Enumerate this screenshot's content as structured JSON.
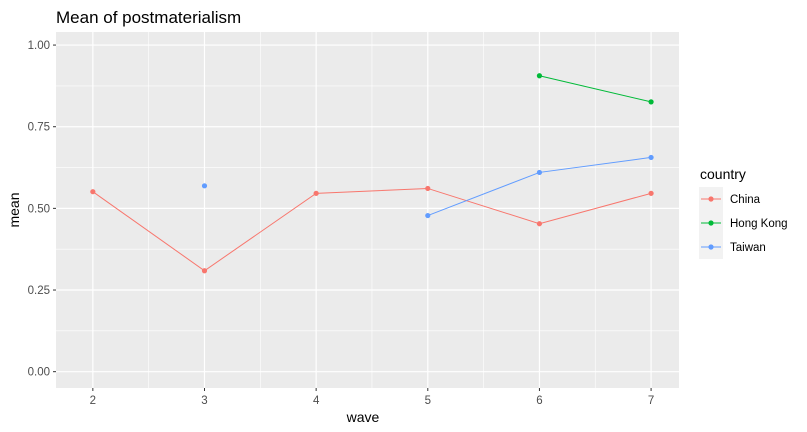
{
  "chart_data": {
    "type": "line",
    "title": "Mean of postmaterialism",
    "xlabel": "wave",
    "ylabel": "mean",
    "x_ticks": [
      "2",
      "3",
      "4",
      "5",
      "6",
      "7"
    ],
    "y_ticks": [
      "0.00",
      "0.25",
      "0.50",
      "0.75",
      "1.00"
    ],
    "xlim": [
      1.67,
      7.25
    ],
    "ylim": [
      -0.05,
      1.04
    ],
    "grid": true,
    "legend": {
      "title": "country",
      "position": "right"
    },
    "series": [
      {
        "name": "China",
        "color": "#F8766D",
        "points": [
          [
            2,
            0.551
          ],
          [
            3,
            0.309
          ],
          [
            4,
            0.546
          ],
          [
            5,
            0.561
          ],
          [
            6,
            0.453
          ],
          [
            7,
            0.546
          ]
        ]
      },
      {
        "name": "Hong Kong",
        "color": "#00BA38",
        "points": [
          [
            6,
            0.906
          ],
          [
            7,
            0.826
          ]
        ]
      },
      {
        "name": "Taiwan",
        "color": "#619CFF",
        "points": [
          [
            3,
            0.569
          ]
        ],
        "segment": [
          [
            5,
            0.478
          ],
          [
            6,
            0.61
          ],
          [
            7,
            0.656
          ]
        ]
      }
    ]
  }
}
